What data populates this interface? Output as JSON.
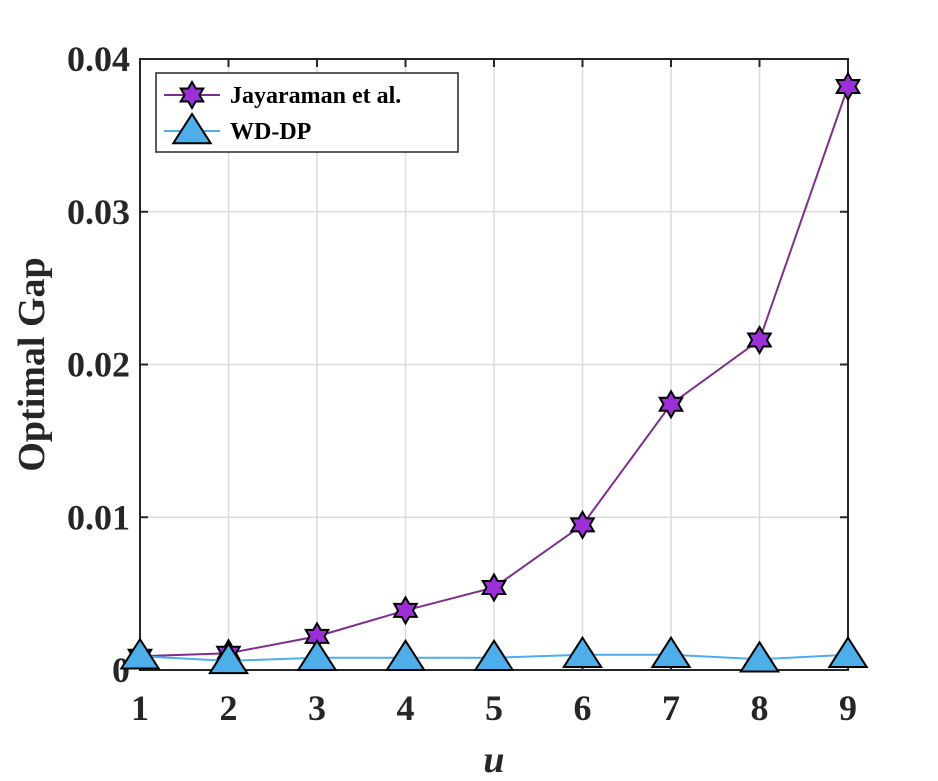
{
  "chart_data": {
    "type": "line",
    "title": "",
    "xlabel": "u",
    "ylabel": "Optimal Gap",
    "x": [
      1,
      2,
      3,
      4,
      5,
      6,
      7,
      8,
      9
    ],
    "xlim": [
      1,
      9
    ],
    "ylim": [
      0,
      0.04
    ],
    "xticks": [
      "1",
      "2",
      "3",
      "4",
      "5",
      "6",
      "7",
      "8",
      "9"
    ],
    "yticks": [
      "0",
      "0.01",
      "0.02",
      "0.03",
      "0.04"
    ],
    "grid": true,
    "legend_position": "top-left",
    "series": [
      {
        "name": "Jayaraman et al.",
        "marker": "hexagram",
        "line_color": "#7E2F8E",
        "marker_color": "#9B30D8",
        "values": [
          0.0009,
          0.0011,
          0.0022,
          0.0039,
          0.0054,
          0.0095,
          0.0174,
          0.0216,
          0.0382
        ]
      },
      {
        "name": "WD-DP",
        "marker": "triangle",
        "line_color": "#4DAEEA",
        "marker_color": "#4DAEEA",
        "values": [
          0.0009,
          0.0006,
          0.0008,
          0.0008,
          0.0008,
          0.001,
          0.001,
          0.0007,
          0.001
        ]
      }
    ]
  }
}
